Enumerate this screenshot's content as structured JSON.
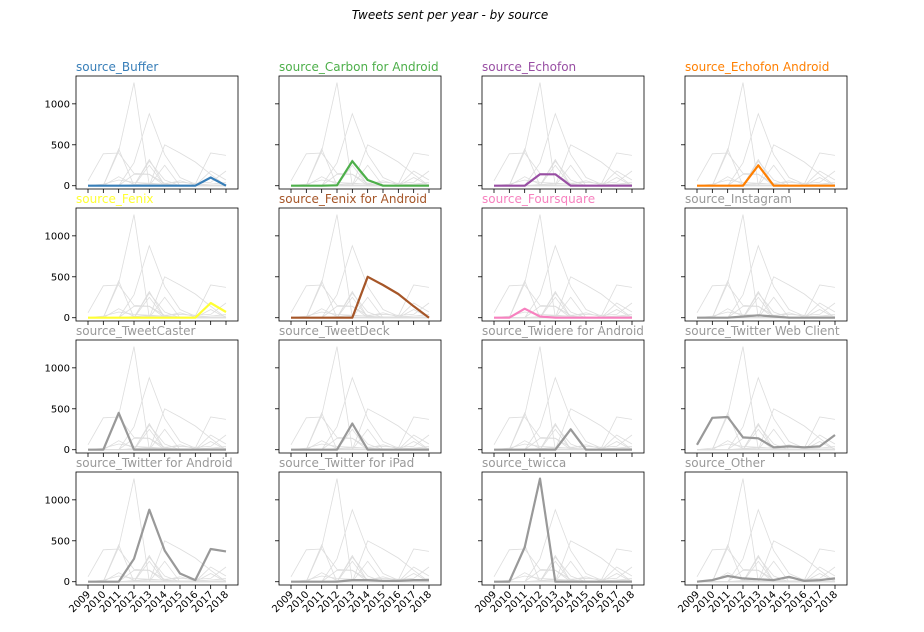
{
  "chart_data": {
    "type": "line",
    "title": "Tweets sent per year - by source",
    "x": [
      "2009",
      "2010",
      "2011",
      "2012",
      "2013",
      "2014",
      "2015",
      "2016",
      "2017",
      "2018"
    ],
    "ylim": [
      -40,
      1340
    ],
    "yticks": [
      0,
      500,
      1000
    ],
    "grid": false,
    "background_line_color": "#dddddd",
    "series": [
      {
        "name": "source_Buffer",
        "color": "#377eb8",
        "values": [
          0,
          0,
          0,
          0,
          0,
          0,
          0,
          0,
          100,
          0
        ]
      },
      {
        "name": "source_Carbon for Android",
        "color": "#4daf4a",
        "values": [
          0,
          0,
          0,
          5,
          300,
          70,
          0,
          0,
          0,
          0
        ]
      },
      {
        "name": "source_Echofon",
        "color": "#984ea3",
        "values": [
          0,
          0,
          0,
          140,
          140,
          0,
          0,
          0,
          0,
          0
        ]
      },
      {
        "name": "source_Echofon  Android",
        "color": "#ff7f00",
        "values": [
          0,
          0,
          0,
          0,
          250,
          0,
          0,
          0,
          0,
          0
        ]
      },
      {
        "name": "source_Fenix",
        "color": "#ffff33",
        "values": [
          0,
          0,
          0,
          0,
          0,
          0,
          0,
          0,
          180,
          70
        ]
      },
      {
        "name": "source_Fenix for Android",
        "color": "#a65628",
        "values": [
          0,
          0,
          0,
          0,
          0,
          500,
          400,
          290,
          140,
          0
        ]
      },
      {
        "name": "source_Foursquare",
        "color": "#f781bf",
        "values": [
          0,
          0,
          110,
          15,
          0,
          0,
          0,
          0,
          0,
          0
        ]
      },
      {
        "name": "source_Instagram",
        "color": "#999999",
        "values": [
          0,
          0,
          0,
          15,
          30,
          15,
          0,
          0,
          0,
          0
        ]
      },
      {
        "name": "source_TweetCaster",
        "color": "#999999",
        "values": [
          0,
          0,
          450,
          0,
          0,
          0,
          0,
          0,
          0,
          0
        ]
      },
      {
        "name": "source_TweetDeck",
        "color": "#999999",
        "values": [
          0,
          0,
          0,
          0,
          320,
          0,
          0,
          0,
          0,
          0
        ]
      },
      {
        "name": "source_Twidere for Android",
        "color": "#999999",
        "values": [
          0,
          0,
          0,
          0,
          0,
          250,
          0,
          0,
          0,
          0
        ]
      },
      {
        "name": "source_Twitter Web Client",
        "color": "#999999",
        "values": [
          60,
          390,
          400,
          150,
          140,
          30,
          40,
          30,
          40,
          180
        ]
      },
      {
        "name": "source_Twitter for Android",
        "color": "#999999",
        "values": [
          0,
          0,
          0,
          280,
          880,
          380,
          100,
          20,
          400,
          370
        ]
      },
      {
        "name": "source_Twitter for iPad",
        "color": "#999999",
        "values": [
          0,
          0,
          0,
          0,
          20,
          20,
          10,
          10,
          20,
          20
        ]
      },
      {
        "name": "source_twicca",
        "color": "#999999",
        "values": [
          0,
          0,
          420,
          1260,
          0,
          0,
          0,
          0,
          0,
          0
        ]
      },
      {
        "name": "source_Other",
        "color": "#999999",
        "values": [
          0,
          20,
          70,
          40,
          30,
          20,
          60,
          10,
          20,
          40
        ]
      }
    ]
  }
}
